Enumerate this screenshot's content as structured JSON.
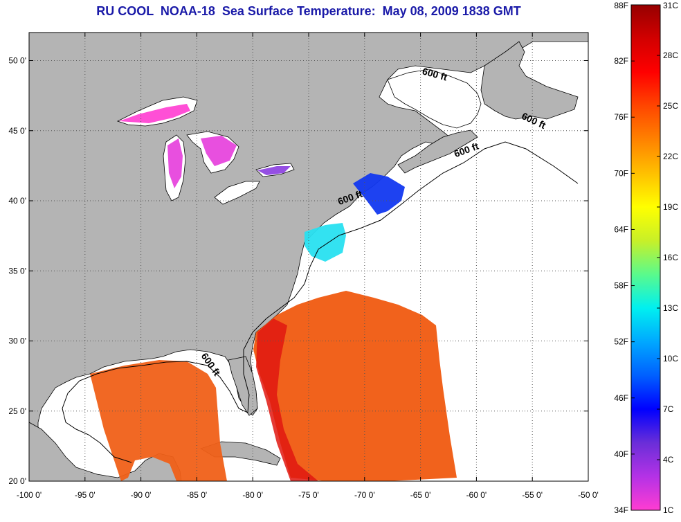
{
  "title": "RU COOL  NOAA-18  Sea Surface Temperature:  May 08, 2009 1838 GMT",
  "map": {
    "lon_range": [
      -100,
      -50
    ],
    "lat_range": [
      20,
      52
    ],
    "lon_ticks": [
      {
        "value": -100,
        "label": "-100 0'"
      },
      {
        "value": -95,
        "label": "-95 0'"
      },
      {
        "value": -90,
        "label": "-90 0'"
      },
      {
        "value": -85,
        "label": "-85 0'"
      },
      {
        "value": -80,
        "label": "-80 0'"
      },
      {
        "value": -75,
        "label": "-75 0'"
      },
      {
        "value": -70,
        "label": "-70 0'"
      },
      {
        "value": -65,
        "label": "-65 0'"
      },
      {
        "value": -60,
        "label": "-60 0'"
      },
      {
        "value": -55,
        "label": "-55 0'"
      },
      {
        "value": -50,
        "label": "-50 0'"
      }
    ],
    "lat_ticks": [
      {
        "value": 20,
        "label": "20 0'"
      },
      {
        "value": 25,
        "label": "25 0'"
      },
      {
        "value": 30,
        "label": "30 0'"
      },
      {
        "value": 35,
        "label": "35 0'"
      },
      {
        "value": 40,
        "label": "40 0'"
      },
      {
        "value": 45,
        "label": "45 0'"
      },
      {
        "value": 50,
        "label": "50 0'"
      }
    ],
    "contour_labels": [
      {
        "text": "600 ft",
        "lon": -63.8,
        "lat": 48.8,
        "angle": 15
      },
      {
        "text": "600 ft",
        "lon": -55.0,
        "lat": 45.5,
        "angle": 25
      },
      {
        "text": "600 ft",
        "lon": -60.8,
        "lat": 43.4,
        "angle": -20
      },
      {
        "text": "600 ft",
        "lon": -71.2,
        "lat": 40.0,
        "angle": -20
      },
      {
        "text": "600 ft",
        "lon": -84.0,
        "lat": 28.2,
        "angle": 55
      }
    ],
    "colors": {
      "land": "#b4b4b4",
      "ocean": "#ffffff",
      "grid": "#555555"
    }
  },
  "colorbar": {
    "fahrenheit_labels": [
      "88F",
      "82F",
      "76F",
      "70F",
      "64F",
      "58F",
      "52F",
      "46F",
      "40F",
      "34F"
    ],
    "celsius_labels": [
      "31C",
      "28C",
      "25C",
      "22C",
      "19C",
      "16C",
      "13C",
      "10C",
      "7C",
      "4C",
      "1C"
    ],
    "stops": [
      "#ff3cd2",
      "#b432e6",
      "#6a2ed8",
      "#0000ff",
      "#0060ff",
      "#00a8ff",
      "#00f0f0",
      "#5afa8c",
      "#c8f028",
      "#ffff00",
      "#ffc000",
      "#ff8200",
      "#ff4600",
      "#ff0000",
      "#d20000",
      "#960000"
    ]
  }
}
